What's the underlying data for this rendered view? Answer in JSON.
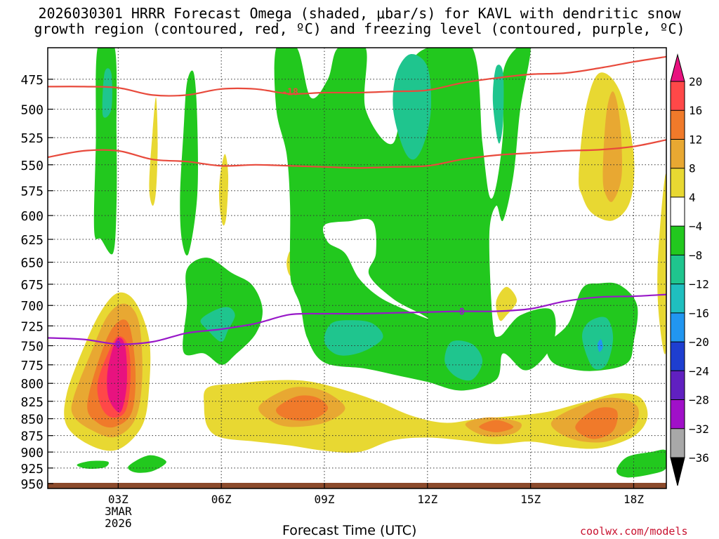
{
  "title_line1": "2026030301 HRRR Forecast Omega (shaded, μbar/s) for KAVL with dendritic snow",
  "title_line2": "growth region (contoured, red, ºC) and freezing level (contoured, purple, ºC)",
  "xlabel": "Forecast Time (UTC)",
  "credit": "coolwx.com/models",
  "chart_data": {
    "type": "heatmap",
    "title": "2026030301 HRRR Forecast Omega (shaded, μbar/s) for KAVL with dendritic snow growth region (contoured, red, ºC) and freezing level (contoured, purple, ºC)",
    "xlabel": "Forecast Time (UTC)",
    "ylabel": "",
    "x_ticks": [
      {
        "hour": 3,
        "label": "03Z",
        "sub": [
          "3MAR",
          "2026"
        ]
      },
      {
        "hour": 6,
        "label": "06Z"
      },
      {
        "hour": 9,
        "label": "09Z"
      },
      {
        "hour": 12,
        "label": "12Z"
      },
      {
        "hour": 15,
        "label": "15Z"
      },
      {
        "hour": 18,
        "label": "18Z"
      }
    ],
    "xlim_hours": [
      0.95,
      18.95
    ],
    "y_ticks": [
      475,
      500,
      525,
      550,
      575,
      600,
      625,
      650,
      675,
      700,
      725,
      750,
      775,
      800,
      825,
      850,
      875,
      900,
      925,
      950
    ],
    "y_scale": "log-pressure",
    "ylim_hpa": [
      450,
      958
    ],
    "grid": "dotted",
    "colorbar": {
      "labels": [
        "20",
        "16",
        "12",
        "8",
        "4",
        "−4",
        "−8",
        "−12",
        "−16",
        "−20",
        "−24",
        "−28",
        "−32",
        "−36"
      ],
      "colors": [
        "#e8127f",
        "#ff4848",
        "#f07a2a",
        "#e8a832",
        "#e8d832",
        "#ffffff",
        "#22c81e",
        "#1fc58e",
        "#1fbfbf",
        "#2196f0",
        "#1e3ed0",
        "#6020c0",
        "#a010c8",
        "#a8a8a8",
        "#000000"
      ],
      "top_color": "#e8127f",
      "bottom_color": "#000000"
    },
    "omega_fill_colors": {
      "pos4": "#e8d832",
      "pos8": "#e8a832",
      "pos12": "#f07a2a",
      "pos16": "#ff4848",
      "pos20": "#e8127f",
      "neg4": "#22c81e",
      "neg8": "#1fc58e",
      "neg12": "#1fbfbf",
      "neg16": "#2196f0"
    },
    "dgz_contours": {
      "color": "#e84a3c",
      "label": "-18",
      "label_at": [
        8.0,
        485
      ],
      "upper": [
        [
          0.95,
          481
        ],
        [
          2,
          481
        ],
        [
          3,
          482
        ],
        [
          4,
          488
        ],
        [
          5,
          488
        ],
        [
          6,
          483
        ],
        [
          7,
          483
        ],
        [
          8,
          487
        ],
        [
          9,
          486
        ],
        [
          10,
          486
        ],
        [
          11,
          485
        ],
        [
          12,
          484
        ],
        [
          13,
          478
        ],
        [
          14,
          474
        ],
        [
          15,
          471
        ],
        [
          16,
          470
        ],
        [
          17,
          466
        ],
        [
          18,
          461
        ],
        [
          18.95,
          457
        ]
      ],
      "lower": [
        [
          0.95,
          543
        ],
        [
          2,
          537
        ],
        [
          3,
          537
        ],
        [
          4,
          545
        ],
        [
          5,
          547
        ],
        [
          6,
          551
        ],
        [
          7,
          550
        ],
        [
          8,
          551
        ],
        [
          9,
          552
        ],
        [
          10,
          553
        ],
        [
          11,
          552
        ],
        [
          12,
          551
        ],
        [
          13,
          545
        ],
        [
          14,
          541
        ],
        [
          15,
          539
        ],
        [
          16,
          537
        ],
        [
          17,
          536
        ],
        [
          18,
          533
        ],
        [
          18.95,
          527
        ]
      ]
    },
    "freezing_level": {
      "color": "#9818c8",
      "label": "0",
      "label_at": [
        13.0,
        707
      ],
      "points": [
        [
          0.95,
          740
        ],
        [
          2,
          742
        ],
        [
          3,
          748
        ],
        [
          4,
          745
        ],
        [
          5,
          734
        ],
        [
          6,
          729
        ],
        [
          7,
          722
        ],
        [
          8,
          711
        ],
        [
          9,
          710
        ],
        [
          10,
          710
        ],
        [
          11,
          709
        ],
        [
          12,
          708
        ],
        [
          13,
          707
        ],
        [
          14,
          707
        ],
        [
          15,
          704
        ],
        [
          16,
          695
        ],
        [
          17,
          690
        ],
        [
          18,
          689
        ],
        [
          18.95,
          687
        ]
      ]
    },
    "ground_color": "#8b4a2b"
  }
}
